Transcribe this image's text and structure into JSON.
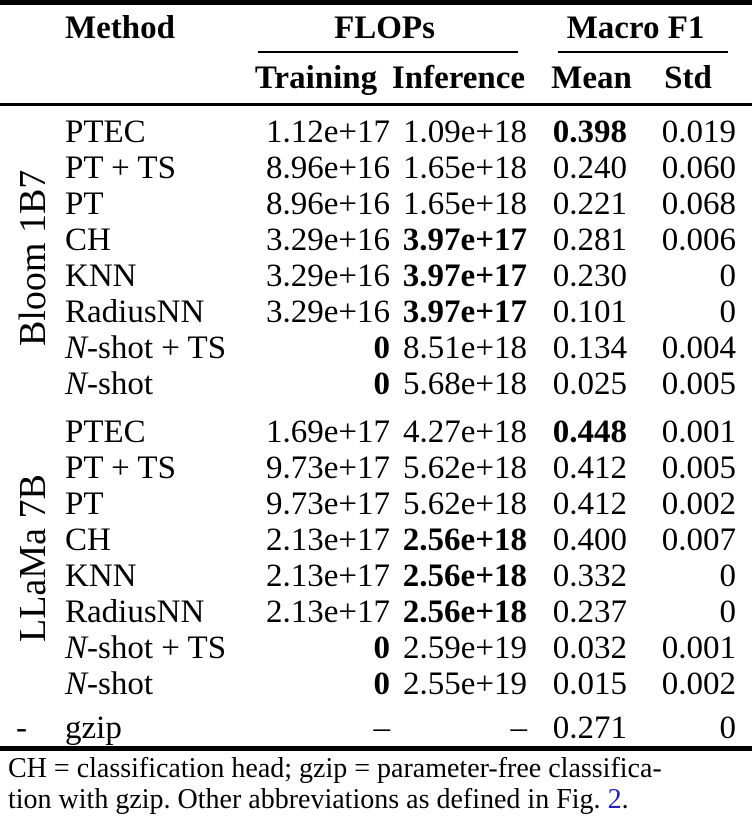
{
  "table": {
    "header": {
      "method": "Method",
      "flops": "FLOPs",
      "macro_f1": "Macro F1",
      "training": "Training",
      "inference": "Inference",
      "mean": "Mean",
      "std": "Std"
    },
    "sections": [
      {
        "group": "Bloom 1B7",
        "rotated": true,
        "rows": [
          {
            "method": "PTEC",
            "training": "1.12e+17",
            "inference": "1.09e+18",
            "mean": "0.398",
            "std": "0.019",
            "bold": [
              "mean"
            ]
          },
          {
            "method": "PT + TS",
            "training": "8.96e+16",
            "inference": "1.65e+18",
            "mean": "0.240",
            "std": "0.060",
            "bold": []
          },
          {
            "method": "PT",
            "training": "8.96e+16",
            "inference": "1.65e+18",
            "mean": "0.221",
            "std": "0.068",
            "bold": []
          },
          {
            "method": "CH",
            "training": "3.29e+16",
            "inference": "3.97e+17",
            "mean": "0.281",
            "std": "0.006",
            "bold": [
              "inference"
            ]
          },
          {
            "method": "KNN",
            "training": "3.29e+16",
            "inference": "3.97e+17",
            "mean": "0.230",
            "std": "0",
            "bold": [
              "inference"
            ]
          },
          {
            "method": "RadiusNN",
            "training": "3.29e+16",
            "inference": "3.97e+17",
            "mean": "0.101",
            "std": "0",
            "bold": [
              "inference"
            ]
          },
          {
            "method": "N-shot + TS",
            "italic_n": true,
            "training": "0",
            "inference": "8.51e+18",
            "mean": "0.134",
            "std": "0.004",
            "bold": [
              "training"
            ]
          },
          {
            "method": "N-shot",
            "italic_n": true,
            "training": "0",
            "inference": "5.68e+18",
            "mean": "0.025",
            "std": "0.005",
            "bold": [
              "training"
            ]
          }
        ]
      },
      {
        "group": "LLaMa 7B",
        "rotated": true,
        "rows": [
          {
            "method": "PTEC",
            "training": "1.69e+17",
            "inference": "4.27e+18",
            "mean": "0.448",
            "std": "0.001",
            "bold": [
              "mean"
            ]
          },
          {
            "method": "PT + TS",
            "training": "9.73e+17",
            "inference": "5.62e+18",
            "mean": "0.412",
            "std": "0.005",
            "bold": []
          },
          {
            "method": "PT",
            "training": "9.73e+17",
            "inference": "5.62e+18",
            "mean": "0.412",
            "std": "0.002",
            "bold": []
          },
          {
            "method": "CH",
            "training": "2.13e+17",
            "inference": "2.56e+18",
            "mean": "0.400",
            "std": "0.007",
            "bold": [
              "inference"
            ]
          },
          {
            "method": "KNN",
            "training": "2.13e+17",
            "inference": "2.56e+18",
            "mean": "0.332",
            "std": "0",
            "bold": [
              "inference"
            ]
          },
          {
            "method": "RadiusNN",
            "training": "2.13e+17",
            "inference": "2.56e+18",
            "mean": "0.237",
            "std": "0",
            "bold": [
              "inference"
            ]
          },
          {
            "method": "N-shot + TS",
            "italic_n": true,
            "training": "0",
            "inference": "2.59e+19",
            "mean": "0.032",
            "std": "0.001",
            "bold": [
              "training"
            ]
          },
          {
            "method": "N-shot",
            "italic_n": true,
            "training": "0",
            "inference": "2.55e+19",
            "mean": "0.015",
            "std": "0.002",
            "bold": [
              "training"
            ]
          }
        ]
      },
      {
        "group": "-",
        "rotated": false,
        "rows": [
          {
            "method": "gzip",
            "training": "–",
            "inference": "–",
            "mean": "0.271",
            "std": "0",
            "bold": []
          }
        ]
      }
    ],
    "footnote": {
      "line1": "CH = classification head; gzip = parameter-free classifica-",
      "line2_pre": "tion with gzip. Other abbreviations as defined in Fig. ",
      "line2_link": "2",
      "line2_post": ".",
      "link_color": "#2222aa"
    }
  }
}
